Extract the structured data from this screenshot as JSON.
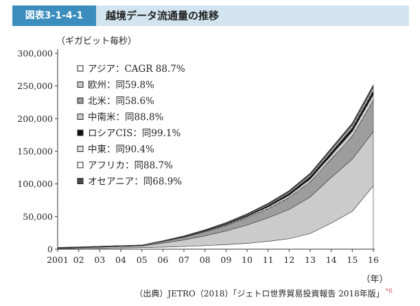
{
  "header": {
    "figure_number": "図表3-1-4-1",
    "title": "越境データ流通量の推移"
  },
  "source": {
    "text": "（出典）JETRO（2018）「ジェトロ世界貿易投資報告 2018年版」",
    "note_ref": "*6"
  },
  "chart_data": {
    "type": "area",
    "stacked": true,
    "ylabel": "（ギガビット毎秒）",
    "xlabel": "（年）",
    "x": [
      "2001",
      "02",
      "03",
      "04",
      "05",
      "06",
      "07",
      "08",
      "09",
      "10",
      "11",
      "12",
      "13",
      "14",
      "15",
      "16"
    ],
    "yticks": [
      "0",
      "50,000",
      "100,000",
      "150,000",
      "200,000",
      "250,000",
      "300,000"
    ],
    "ylim": [
      0,
      300000
    ],
    "grid": false,
    "legend_position": "top-left",
    "series": [
      {
        "name": "アジア：CAGR 88.7%",
        "color": "#ffffff",
        "marker": "open-square",
        "values": [
          800,
          1200,
          1600,
          2000,
          2400,
          3200,
          4200,
          5500,
          7000,
          9000,
          12000,
          16000,
          24000,
          40000,
          58000,
          97000
        ]
      },
      {
        "name": "欧州：同59.8%",
        "color": "#cbcbcb",
        "marker": "light-square",
        "values": [
          1000,
          1200,
          1600,
          2000,
          2400,
          6000,
          10000,
          15000,
          21000,
          28000,
          36000,
          45000,
          56000,
          70000,
          80000,
          83000
        ]
      },
      {
        "name": "北米：同58.6%",
        "color": "#9d9d9d",
        "marker": "gray-square",
        "values": [
          400,
          600,
          800,
          900,
          1000,
          2500,
          4000,
          6000,
          8000,
          11000,
          14000,
          18000,
          23000,
          28000,
          35000,
          48000
        ]
      },
      {
        "name": "中南米：同88.8%",
        "color": "#e8e8e8",
        "marker": "hatched-square",
        "values": [
          100,
          100,
          200,
          200,
          200,
          400,
          700,
          1000,
          1500,
          2000,
          2800,
          3600,
          4600,
          6000,
          7500,
          9000
        ]
      },
      {
        "name": "ロシアCIS：同99.1%",
        "color": "#111111",
        "marker": "black-square",
        "values": [
          100,
          100,
          100,
          100,
          100,
          300,
          500,
          800,
          1200,
          1700,
          2300,
          3000,
          3700,
          4500,
          5300,
          6000
        ]
      },
      {
        "name": "中東：同90.4%",
        "color": "#f0f0f0",
        "marker": "lined-square",
        "values": [
          100,
          100,
          100,
          100,
          100,
          200,
          400,
          600,
          900,
          1200,
          1500,
          1900,
          2300,
          2800,
          3300,
          4000
        ]
      },
      {
        "name": "アフリカ：同88.7%",
        "color": "#ffffff",
        "marker": "open-square",
        "values": [
          50,
          50,
          50,
          50,
          50,
          100,
          200,
          300,
          400,
          500,
          700,
          900,
          1100,
          1400,
          1700,
          2000
        ]
      },
      {
        "name": "オセアニア：同68.9%",
        "color": "#4a4a4a",
        "marker": "dark-square",
        "values": [
          100,
          100,
          100,
          100,
          100,
          200,
          400,
          500,
          700,
          900,
          1100,
          1400,
          1800,
          2200,
          2600,
          3000
        ]
      }
    ]
  }
}
